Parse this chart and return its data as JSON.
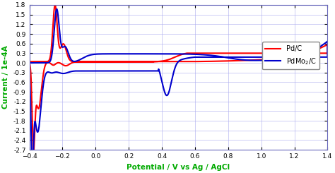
{
  "title": "",
  "xlabel": "Potential / V vs Ag / AgCl",
  "ylabel": "Current / 1e-4A",
  "xlim": [
    -0.4,
    1.4
  ],
  "ylim": [
    -2.7,
    1.8
  ],
  "yticks": [
    -2.7,
    -2.4,
    -2.1,
    -1.8,
    -1.5,
    -1.2,
    -0.9,
    -0.6,
    -0.3,
    0.0,
    0.3,
    0.6,
    0.9,
    1.2,
    1.5,
    1.8
  ],
  "xticks": [
    -0.4,
    -0.2,
    0.0,
    0.2,
    0.4,
    0.6,
    0.8,
    1.0,
    1.2,
    1.4
  ],
  "color_red": "#ff0000",
  "color_blue": "#0000cd",
  "legend_labels": [
    "Pd/C",
    "PdMo$_2$/C"
  ],
  "xlabel_color": "#00aa00",
  "ylabel_color": "#00aa00",
  "background_color": "#ffffff",
  "grid_color": "#aaaaee",
  "linewidth": 1.5
}
